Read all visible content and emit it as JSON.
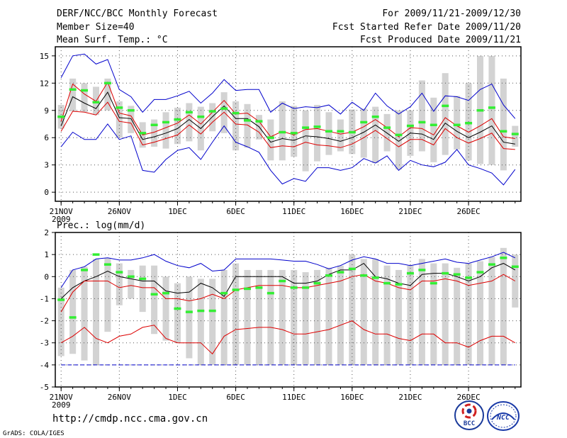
{
  "header": {
    "title": "DERF/NCC/BCC Monthly Forecast",
    "member_size": "Member Size=40",
    "variable_top": "Mean Surf. Temp.: °C",
    "period": "For 2009/11/21-2009/12/30",
    "fcst_started": "Fcst Started Refer Date 2009/11/20",
    "fcst_produced": "Fcst Produced Date 2009/11/21"
  },
  "footer": {
    "url": "http://cmdp.ncc.cma.gov.cn",
    "credit": "GrADS: COLA/IGES",
    "logo_bcc_text": "BCC",
    "logo_ncc_text": "NCC"
  },
  "colors": {
    "bar": "#d3d3d3",
    "max_min": "#0000cc",
    "spread": "#dd0000",
    "mean": "#000000",
    "observed": "#33ee33",
    "grid": "#555555"
  },
  "chart_data": [
    {
      "type": "line",
      "title": "Mean Surf. Temp.: °C",
      "x": [
        21,
        22,
        23,
        24,
        25,
        26,
        27,
        28,
        29,
        30,
        31,
        32,
        33,
        34,
        35,
        36,
        37,
        38,
        39,
        40,
        41,
        42,
        43,
        44,
        45,
        46,
        47,
        48,
        49,
        50,
        51,
        52,
        53,
        54,
        55,
        56,
        57,
        58,
        59,
        60
      ],
      "xticks": [
        {
          "day": 21,
          "label": "21NOV",
          "sub": "2009"
        },
        {
          "day": 26,
          "label": "26NOV"
        },
        {
          "day": 31,
          "label": "1DEC"
        },
        {
          "day": 36,
          "label": "6DEC"
        },
        {
          "day": 41,
          "label": "11DEC"
        },
        {
          "day": 46,
          "label": "16DEC"
        },
        {
          "day": 51,
          "label": "21DEC"
        },
        {
          "day": 56,
          "label": "26DEC"
        }
      ],
      "xlim": [
        20.5,
        60.5
      ],
      "ylim": [
        -1,
        16
      ],
      "yticks": [
        0,
        3,
        6,
        9,
        12,
        15
      ],
      "grid": true,
      "series": [
        {
          "name": "Max",
          "values": [
            5.0,
            6.6,
            5.8,
            5.8,
            7.5,
            5.8,
            6.2,
            2.4,
            2.2,
            3.6,
            4.6,
            4.9,
            3.6,
            5.5,
            7.3,
            5.5,
            5.0,
            4.4,
            2.4,
            0.9,
            1.5,
            1.2,
            2.7,
            2.7,
            2.4,
            2.7,
            3.7,
            3.2,
            4.0,
            2.4,
            3.5,
            3.0,
            2.8,
            3.3,
            4.7,
            3.0,
            2.6,
            2.1,
            0.8,
            2.5
          ]
        },
        {
          "name": "Min",
          "values": [
            12.6,
            15.0,
            15.2,
            14.1,
            14.6,
            11.3,
            10.5,
            8.8,
            10.2,
            10.2,
            10.6,
            11.1,
            9.8,
            10.9,
            12.4,
            11.2,
            11.3,
            11.3,
            8.8,
            9.8,
            9.2,
            9.4,
            9.3,
            9.6,
            8.6,
            9.9,
            9.0,
            10.9,
            9.5,
            8.6,
            9.4,
            10.9,
            8.9,
            10.6,
            10.5,
            10.1,
            11.3,
            11.9,
            9.6,
            8.1
          ]
        },
        {
          "name": "Spread Upper",
          "values": [
            7.8,
            11.9,
            10.8,
            10.0,
            12.1,
            8.7,
            8.4,
            6.3,
            6.6,
            7.1,
            7.6,
            8.5,
            7.5,
            8.8,
            10.1,
            8.6,
            8.7,
            7.8,
            6.1,
            6.7,
            6.3,
            6.9,
            7.0,
            6.7,
            6.4,
            6.6,
            7.2,
            8.0,
            7.1,
            6.1,
            7.1,
            7.0,
            6.3,
            8.2,
            7.3,
            6.6,
            7.3,
            8.1,
            6.1,
            5.9
          ]
        },
        {
          "name": "Spread Lower",
          "values": [
            6.7,
            8.9,
            8.8,
            8.5,
            9.9,
            7.8,
            7.6,
            5.2,
            5.5,
            5.9,
            6.3,
            7.4,
            6.4,
            7.7,
            8.8,
            7.5,
            7.4,
            6.6,
            4.9,
            5.1,
            5.0,
            5.5,
            5.2,
            5.1,
            4.9,
            5.3,
            6.0,
            6.8,
            5.9,
            5.0,
            5.8,
            5.8,
            5.2,
            7.0,
            6.0,
            5.4,
            5.9,
            6.5,
            4.8,
            4.7
          ]
        },
        {
          "name": "Ensemble Mean",
          "values": [
            7.3,
            10.5,
            9.8,
            9.2,
            11.0,
            8.2,
            8.1,
            5.8,
            6.1,
            6.5,
            7.0,
            8.0,
            7.0,
            8.3,
            9.5,
            8.1,
            8.1,
            7.2,
            5.5,
            5.9,
            5.7,
            6.2,
            6.1,
            5.9,
            5.6,
            6.0,
            6.6,
            7.4,
            6.5,
            5.6,
            6.5,
            6.4,
            5.8,
            7.6,
            6.7,
            6.0,
            6.6,
            7.3,
            5.5,
            5.3
          ]
        },
        {
          "name": "Observed",
          "values": [
            8.3,
            11.3,
            11.2,
            9.9,
            12.0,
            9.3,
            9.0,
            6.5,
            7.4,
            7.7,
            8.0,
            8.8,
            8.3,
            8.9,
            9.2,
            8.7,
            7.9,
            7.8,
            6.0,
            6.6,
            6.5,
            7.1,
            7.2,
            6.7,
            6.7,
            6.6,
            7.7,
            8.3,
            7.1,
            6.3,
            7.3,
            7.7,
            7.4,
            9.5,
            7.4,
            7.6,
            9.0,
            9.3,
            6.7,
            6.4
          ]
        }
      ],
      "bars": {
        "name": "Ensemble Range",
        "low": [
          7.0,
          8.9,
          8.8,
          8.5,
          9.0,
          6.0,
          6.5,
          4.9,
          5.0,
          4.8,
          5.3,
          5.6,
          4.6,
          6.7,
          6.5,
          4.6,
          4.9,
          5.8,
          3.5,
          3.5,
          3.9,
          2.3,
          3.4,
          4.1,
          4.5,
          4.2,
          3.8,
          3.2,
          4.5,
          2.5,
          4.0,
          4.5,
          3.3,
          4.1,
          4.7,
          3.5,
          3.1,
          3.0,
          2.4,
          5.0
        ],
        "high": [
          9.6,
          12.5,
          12.0,
          11.6,
          12.5,
          10.0,
          9.5,
          7.7,
          8.0,
          8.8,
          9.3,
          9.8,
          9.4,
          9.8,
          11.0,
          10.0,
          9.7,
          8.5,
          8.0,
          10.0,
          9.5,
          9.0,
          9.6,
          8.8,
          8.0,
          9.1,
          9.2,
          9.4,
          8.6,
          9.0,
          9.0,
          12.3,
          10.4,
          13.1,
          10.6,
          12.0,
          15.0,
          15.0,
          12.5,
          7.3
        ]
      }
    },
    {
      "type": "line",
      "title": "Prec.: log(mm/d)",
      "x": [
        21,
        22,
        23,
        24,
        25,
        26,
        27,
        28,
        29,
        30,
        31,
        32,
        33,
        34,
        35,
        36,
        37,
        38,
        39,
        40,
        41,
        42,
        43,
        44,
        45,
        46,
        47,
        48,
        49,
        50,
        51,
        52,
        53,
        54,
        55,
        56,
        57,
        58,
        59,
        60
      ],
      "xticks": [
        {
          "day": 21,
          "label": "21NOV",
          "sub": "2009"
        },
        {
          "day": 26,
          "label": "26NOV"
        },
        {
          "day": 31,
          "label": "1DEC"
        },
        {
          "day": 36,
          "label": "6DEC"
        },
        {
          "day": 41,
          "label": "11DEC"
        },
        {
          "day": 46,
          "label": "16DEC"
        },
        {
          "day": 51,
          "label": "21DEC"
        },
        {
          "day": 56,
          "label": "26DEC"
        }
      ],
      "xlim": [
        20.5,
        60.5
      ],
      "ylim": [
        -5,
        2
      ],
      "yticks": [
        -5,
        -4,
        -3,
        -2,
        -1,
        0,
        1,
        2
      ],
      "grid": true,
      "series": [
        {
          "name": "Max",
          "values": [
            -0.5,
            0.3,
            0.45,
            0.8,
            0.85,
            0.75,
            0.75,
            0.85,
            1.0,
            0.7,
            0.5,
            0.4,
            0.6,
            0.25,
            0.3,
            0.8,
            0.8,
            0.8,
            0.8,
            0.75,
            0.7,
            0.7,
            0.55,
            0.35,
            0.5,
            0.75,
            0.9,
            0.8,
            0.6,
            0.6,
            0.5,
            0.6,
            0.7,
            0.8,
            0.65,
            0.6,
            0.75,
            0.9,
            1.1,
            0.85
          ]
        },
        {
          "name": "Ensemble Mean",
          "values": [
            -1.0,
            -0.5,
            -0.2,
            0.0,
            0.25,
            0.0,
            -0.1,
            -0.2,
            -0.2,
            -0.65,
            -0.75,
            -0.7,
            -0.3,
            -0.5,
            -0.9,
            0.0,
            0.0,
            0.0,
            0.0,
            0.0,
            -0.3,
            -0.3,
            -0.2,
            0.1,
            0.3,
            0.3,
            0.6,
            0.0,
            -0.1,
            -0.3,
            -0.4,
            0.1,
            0.15,
            0.15,
            0.0,
            -0.2,
            0.0,
            0.4,
            0.6,
            0.3
          ]
        },
        {
          "name": "Spread Upper",
          "values": [
            -1.6,
            -0.7,
            -0.2,
            -0.2,
            -0.2,
            -0.5,
            -0.4,
            -0.5,
            -0.5,
            -1.0,
            -1.0,
            -1.1,
            -1.0,
            -0.8,
            -1.0,
            -0.6,
            -0.5,
            -0.4,
            -0.4,
            -0.4,
            -0.5,
            -0.5,
            -0.4,
            -0.3,
            -0.2,
            0.0,
            0.1,
            -0.2,
            -0.3,
            -0.5,
            -0.6,
            -0.2,
            -0.2,
            -0.1,
            -0.2,
            -0.4,
            -0.3,
            -0.2,
            0.1,
            -0.2
          ]
        },
        {
          "name": "Spread Lower",
          "values": [
            -3.0,
            -2.7,
            -2.3,
            -2.8,
            -3.0,
            -2.7,
            -2.6,
            -2.3,
            -2.2,
            -2.8,
            -3.0,
            -3.0,
            -3.0,
            -3.5,
            -2.7,
            -2.4,
            -2.35,
            -2.3,
            -2.3,
            -2.4,
            -2.6,
            -2.6,
            -2.5,
            -2.4,
            -2.2,
            -2.0,
            -2.4,
            -2.6,
            -2.6,
            -2.8,
            -2.9,
            -2.6,
            -2.6,
            -3.0,
            -3.0,
            -3.2,
            -2.9,
            -2.7,
            -2.7,
            -3.0
          ]
        },
        {
          "name": "Min",
          "values": [
            -4.0,
            -4.0,
            -4.0,
            -4.0,
            -4.0,
            -4.0,
            -4.0,
            -4.0,
            -4.0,
            -4.0,
            -4.0,
            -4.0,
            -4.0,
            -4.0,
            -4.0,
            -4.0,
            -4.0,
            -4.0,
            -4.0,
            -4.0,
            -4.0,
            -4.0,
            -4.0,
            -4.0,
            -4.0,
            -4.0,
            -4.0,
            -4.0,
            -4.0,
            -4.0,
            -4.0,
            -4.0,
            -4.0,
            -4.0,
            -4.0,
            -4.0,
            -4.0,
            -4.0,
            -4.0,
            -4.0
          ]
        },
        {
          "name": "Observed",
          "values": [
            -1.05,
            -1.85,
            0.3,
            1.0,
            0.55,
            0.2,
            0.0,
            -0.1,
            -0.8,
            -0.75,
            -1.45,
            -1.6,
            -1.55,
            -1.55,
            -0.75,
            -0.6,
            -0.55,
            -0.5,
            -0.75,
            -0.2,
            -0.5,
            -0.5,
            -0.3,
            0.05,
            0.2,
            0.35,
            0.05,
            -0.05,
            -0.3,
            -0.35,
            0.15,
            0.3,
            -0.3,
            0.15,
            0.1,
            -0.05,
            0.2,
            0.55,
            0.85,
            0.45
          ]
        }
      ],
      "bars": {
        "name": "Ensemble Range",
        "low": [
          -3.6,
          -3.5,
          -3.8,
          -4.0,
          -2.5,
          -1.3,
          -1.0,
          -1.6,
          -2.6,
          -2.9,
          -3.0,
          -3.7,
          -4.0,
          -4.0,
          -4.0,
          -4.0,
          -4.0,
          -4.0,
          -4.0,
          -4.0,
          -4.0,
          -4.0,
          -4.0,
          -4.0,
          -4.0,
          -4.0,
          -4.0,
          -4.0,
          -4.0,
          -4.0,
          -4.0,
          -4.0,
          -4.0,
          -4.0,
          -4.0,
          -4.0,
          -4.0,
          -4.0,
          -4.0,
          -1.4
        ],
        "high": [
          -0.5,
          0.3,
          0.45,
          0.8,
          0.85,
          0.6,
          0.3,
          0.5,
          0.5,
          0.0,
          -0.3,
          0.0,
          -0.1,
          -0.1,
          0.3,
          0.6,
          0.3,
          0.3,
          0.3,
          0.3,
          0.3,
          0.2,
          0.3,
          0.4,
          0.5,
          1.0,
          0.8,
          0.8,
          0.5,
          0.3,
          0.5,
          0.8,
          0.6,
          0.6,
          0.4,
          0.6,
          0.7,
          0.9,
          1.3,
          1.0
        ]
      }
    }
  ]
}
